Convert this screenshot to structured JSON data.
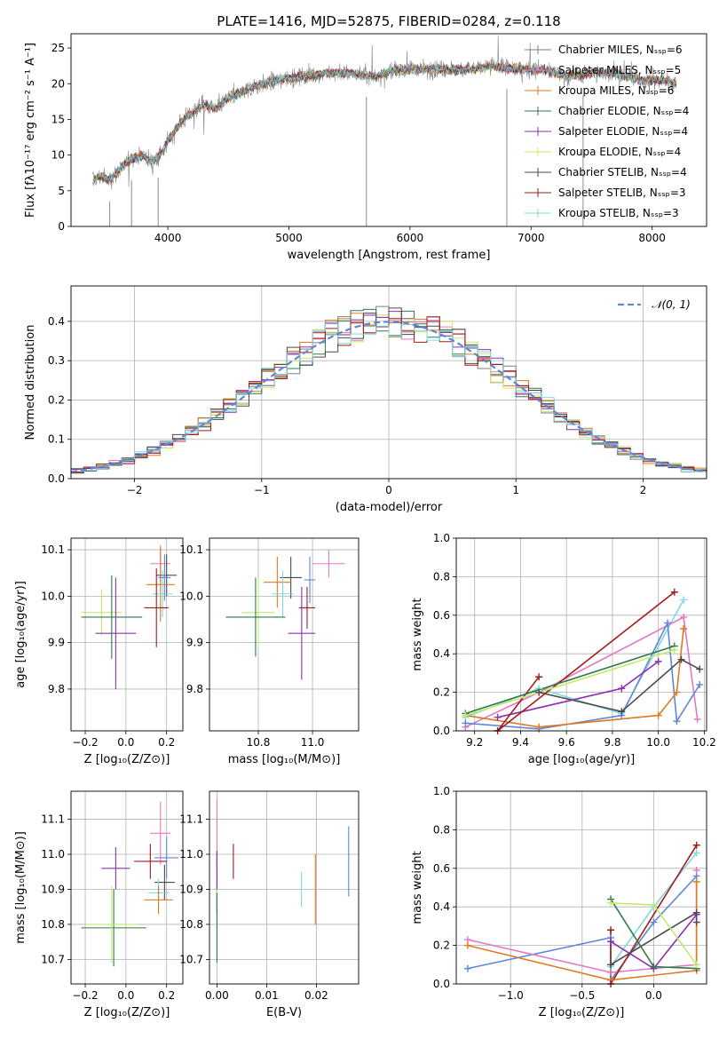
{
  "chart_data": [
    {
      "type": "line",
      "title": "PLATE=1416, MJD=52875, FIBERID=0284, z=0.118",
      "xlabel": "wavelength [Angstrom, rest frame]",
      "ylabel": "Flux [fλ10⁻¹⁷ erg cm⁻² s⁻¹ A⁻¹]",
      "xlim": [
        3200,
        8450
      ],
      "ylim": [
        0,
        27
      ],
      "xticks": [
        4000,
        5000,
        6000,
        7000,
        8000
      ],
      "yticks": [
        0,
        5,
        10,
        15,
        20,
        25
      ],
      "grid": false,
      "legend": "top-right",
      "series": [
        {
          "name": "Chabrier MILES, N_SSP=6",
          "color": "#7f7f7f"
        },
        {
          "name": "Salpeter MILES, N_SSP=5",
          "color": "#e377c2"
        },
        {
          "name": "Kroupa MILES, N_SSP=6",
          "color": "#dd7a23"
        },
        {
          "name": "Chabrier ELODIE, N_SSP=4",
          "color": "#2a7a4a"
        },
        {
          "name": "Salpeter ELODIE, N_SSP=4",
          "color": "#8e2fb0"
        },
        {
          "name": "Kroupa ELODIE, N_SSP=4",
          "color": "#c5e86b"
        },
        {
          "name": "Chabrier STELIB, N_SSP=4",
          "color": "#4a4a4a"
        },
        {
          "name": "Salpeter STELIB, N_SSP=3",
          "color": "#a51a1a"
        },
        {
          "name": "Kroupa STELIB, N_SSP=3",
          "color": "#7fd9e0"
        }
      ],
      "spectrum_anchor_points": {
        "x": [
          3380,
          3450,
          3520,
          3600,
          3700,
          3800,
          3860,
          3900,
          3960,
          4000,
          4100,
          4200,
          4300,
          4400,
          4500,
          4700,
          4900,
          5100,
          5300,
          5500,
          5700,
          5900,
          6100,
          6300,
          6500,
          6700,
          6900,
          7100,
          7300,
          7500,
          7700,
          7900,
          8100,
          8200
        ],
        "y": [
          6.5,
          7.0,
          6.5,
          8.0,
          9.5,
          10.0,
          9.0,
          9.5,
          10.5,
          12.0,
          14.5,
          16.0,
          17.0,
          16.5,
          18.0,
          19.5,
          20.5,
          21.0,
          21.5,
          21.5,
          21.0,
          22.0,
          22.0,
          22.0,
          22.0,
          22.5,
          22.0,
          22.0,
          21.0,
          21.5,
          21.5,
          20.5,
          20.5,
          20.0
        ]
      },
      "spikes_x": [
        3520,
        3700,
        3920,
        5640,
        6800,
        7430
      ]
    },
    {
      "type": "line",
      "xlabel": "(data-model)/error",
      "ylabel": "Normed distribution",
      "xlim": [
        -2.5,
        2.5
      ],
      "ylim": [
        0,
        0.49
      ],
      "xticks": [
        -2,
        -1,
        0,
        1,
        2
      ],
      "yticks": [
        0.0,
        0.1,
        0.2,
        0.3,
        0.4
      ],
      "grid": true,
      "legend": "top-right",
      "reference_curve": {
        "name": "𝒩(0, 1)",
        "color": "#5f87d7",
        "style": "dashed"
      },
      "histograms_described_by": "step histograms, bin width 0.1, one per fit (9 series, same colors as panel 1)"
    },
    {
      "type": "scatter",
      "xlabel": "Z [log₁₀(Z/Z⊙)]",
      "ylabel": "age  [log₁₀(age/yr)]",
      "xlim": [
        -0.27,
        0.28
      ],
      "ylim": [
        9.71,
        10.125
      ],
      "xticks": [
        -0.2,
        0.0,
        0.2
      ],
      "yticks": [
        9.8,
        9.9,
        10.0,
        10.1
      ],
      "grid": true,
      "points": [
        {
          "x": 0.17,
          "y": 10.07,
          "xerr": 0.05,
          "yerr": 0.04,
          "color": "#e377c2"
        },
        {
          "x": 0.2,
          "y": 10.045,
          "xerr": 0.05,
          "yerr": 0.045,
          "color": "#4a4a4a"
        },
        {
          "x": 0.17,
          "y": 10.025,
          "xerr": 0.07,
          "yerr": 0.08,
          "color": "#dd7a23"
        },
        {
          "x": 0.18,
          "y": 10.005,
          "xerr": 0.05,
          "yerr": 0.05,
          "color": "#7fd9e0"
        },
        {
          "x": 0.19,
          "y": 10.04,
          "xerr": 0.03,
          "yerr": 0.05,
          "color": "#5f87d7"
        },
        {
          "x": 0.15,
          "y": 9.975,
          "xerr": 0.06,
          "yerr": 0.085,
          "color": "#a51a1a"
        },
        {
          "x": -0.12,
          "y": 9.965,
          "xerr": 0.1,
          "yerr": 0.05,
          "color": "#c5e86b"
        },
        {
          "x": -0.07,
          "y": 9.955,
          "xerr": 0.15,
          "yerr": 0.09,
          "color": "#2a7a4a"
        },
        {
          "x": -0.05,
          "y": 9.92,
          "xerr": 0.1,
          "yerr": 0.12,
          "color": "#8e2fb0"
        }
      ]
    },
    {
      "type": "scatter",
      "xlabel": "mass [log₁₀(M/M⊙)]",
      "xlim": [
        10.62,
        11.17
      ],
      "ylim": [
        9.71,
        10.125
      ],
      "xticks": [
        10.8,
        11.0
      ],
      "yticks": [
        9.8,
        9.9,
        10.0,
        10.1
      ],
      "grid": true,
      "points": [
        {
          "x": 11.06,
          "y": 10.07,
          "xerr": 0.06,
          "yerr": 0.03,
          "color": "#e377c2"
        },
        {
          "x": 10.92,
          "y": 10.04,
          "xerr": 0.04,
          "yerr": 0.045,
          "color": "#4a4a4a"
        },
        {
          "x": 10.87,
          "y": 10.03,
          "xerr": 0.05,
          "yerr": 0.055,
          "color": "#dd7a23"
        },
        {
          "x": 10.89,
          "y": 10.005,
          "xerr": 0.04,
          "yerr": 0.05,
          "color": "#7fd9e0"
        },
        {
          "x": 10.99,
          "y": 10.035,
          "xerr": 0.02,
          "yerr": 0.05,
          "color": "#5f87d7"
        },
        {
          "x": 10.98,
          "y": 9.975,
          "xerr": 0.03,
          "yerr": 0.045,
          "color": "#a51a1a"
        },
        {
          "x": 10.8,
          "y": 9.965,
          "xerr": 0.06,
          "yerr": 0.075,
          "color": "#c5e86b"
        },
        {
          "x": 10.79,
          "y": 9.955,
          "xerr": 0.11,
          "yerr": 0.085,
          "color": "#2a7a4a"
        },
        {
          "x": 10.96,
          "y": 9.92,
          "xerr": 0.05,
          "yerr": 0.1,
          "color": "#8e2fb0"
        }
      ]
    },
    {
      "type": "line",
      "xlabel": "age  [log₁₀(age/yr)]",
      "ylabel": "mass weight",
      "xlim": [
        9.12,
        10.21
      ],
      "ylim": [
        0.0,
        1.0
      ],
      "xticks": [
        9.2,
        9.4,
        9.6,
        9.8,
        10.0,
        10.2
      ],
      "yticks": [
        0.0,
        0.2,
        0.4,
        0.6,
        0.8,
        1.0
      ],
      "grid": true,
      "series": [
        {
          "color": "#7fd9e0",
          "x": [
            9.16,
            9.48,
            9.84,
            10.11
          ],
          "y": [
            0.07,
            0.22,
            0.09,
            0.68
          ]
        },
        {
          "color": "#e377c2",
          "x": [
            9.16,
            9.48,
            10.11,
            10.17
          ],
          "y": [
            0.02,
            0.2,
            0.59,
            0.06
          ]
        },
        {
          "color": "#5f87d7",
          "x": [
            9.16,
            9.48,
            9.84,
            10.04,
            10.08,
            10.18
          ],
          "y": [
            0.04,
            0.01,
            0.08,
            0.56,
            0.05,
            0.24
          ]
        },
        {
          "color": "#dd7a23",
          "x": [
            9.16,
            9.48,
            10.0,
            10.08,
            10.11
          ],
          "y": [
            0.08,
            0.02,
            0.08,
            0.2,
            0.53
          ]
        },
        {
          "color": "#4a4a4a",
          "x": [
            9.48,
            9.84,
            10.1,
            10.18
          ],
          "y": [
            0.2,
            0.1,
            0.37,
            0.32
          ]
        },
        {
          "color": "#8e2fb0",
          "x": [
            9.3,
            9.84,
            10.0
          ],
          "y": [
            0.07,
            0.22,
            0.36
          ]
        },
        {
          "color": "#a51a1a",
          "x": [
            9.48,
            9.3,
            10.07
          ],
          "y": [
            0.28,
            0.0,
            0.72
          ]
        },
        {
          "color": "#2a7a4a",
          "x": [
            9.16,
            10.07
          ],
          "y": [
            0.09,
            0.44
          ]
        },
        {
          "color": "#c5e86b",
          "x": [
            9.16,
            10.07
          ],
          "y": [
            0.08,
            0.42
          ]
        }
      ]
    },
    {
      "type": "scatter",
      "xlabel": "Z [log₁₀(Z/Z⊙)]",
      "ylabel": "mass [log₁₀(M/M⊙)]",
      "xlim": [
        -0.27,
        0.28
      ],
      "ylim": [
        10.63,
        11.18
      ],
      "xticks": [
        -0.2,
        0.0,
        0.2
      ],
      "yticks": [
        10.7,
        10.8,
        10.9,
        11.0,
        11.1
      ],
      "grid": true,
      "points": [
        {
          "x": 0.17,
          "y": 11.06,
          "xerr": 0.05,
          "yerr": 0.09,
          "color": "#e377c2"
        },
        {
          "x": 0.2,
          "y": 10.99,
          "xerr": 0.06,
          "yerr": 0.06,
          "color": "#5f87d7"
        },
        {
          "x": 0.12,
          "y": 10.98,
          "xerr": 0.08,
          "yerr": 0.05,
          "color": "#a51a1a"
        },
        {
          "x": -0.05,
          "y": 10.96,
          "xerr": 0.07,
          "yerr": 0.06,
          "color": "#8e2fb0"
        },
        {
          "x": 0.19,
          "y": 10.92,
          "xerr": 0.05,
          "yerr": 0.05,
          "color": "#4a4a4a"
        },
        {
          "x": 0.16,
          "y": 10.89,
          "xerr": 0.05,
          "yerr": 0.04,
          "color": "#7fd9e0"
        },
        {
          "x": 0.16,
          "y": 10.87,
          "xerr": 0.07,
          "yerr": 0.04,
          "color": "#dd7a23"
        },
        {
          "x": -0.06,
          "y": 10.79,
          "xerr": 0.16,
          "yerr": 0.11,
          "color": "#2a7a4a"
        },
        {
          "x": -0.07,
          "y": 10.8,
          "xerr": 0.13,
          "yerr": 0.11,
          "color": "#c5e86b"
        }
      ]
    },
    {
      "type": "scatter",
      "xlabel": "E(B-V)",
      "xlim": [
        -0.0015,
        0.0285
      ],
      "ylim": [
        10.63,
        11.18
      ],
      "xticks": [
        0.0,
        0.01,
        0.02
      ],
      "yticks": [
        10.7,
        10.8,
        10.9,
        11.0,
        11.1
      ],
      "grid": true,
      "points": [
        {
          "x": 0.0,
          "y": 11.06,
          "yerr": 0.1,
          "color": "#e377c2"
        },
        {
          "x": 0.0,
          "y": 10.92,
          "yerr": 0.09,
          "color": "#4a4a4a"
        },
        {
          "x": 0.0,
          "y": 10.8,
          "yerr": 0.11,
          "color": "#c5e86b"
        },
        {
          "x": 0.0,
          "y": 10.79,
          "yerr": 0.1,
          "color": "#2a7a4a"
        },
        {
          "x": 0.0,
          "y": 10.95,
          "yerr": 0.05,
          "color": "#8e2fb0"
        },
        {
          "x": 0.0033,
          "y": 10.98,
          "yerr": 0.05,
          "color": "#a51a1a"
        },
        {
          "x": 0.017,
          "y": 10.9,
          "yerr": 0.05,
          "color": "#7fd9e0"
        },
        {
          "x": 0.0198,
          "y": 10.9,
          "yerr": 0.1,
          "color": "#dd7a23"
        },
        {
          "x": 0.0265,
          "y": 10.98,
          "yerr": 0.1,
          "color": "#5f87d7"
        }
      ]
    },
    {
      "type": "line",
      "xlabel": "Z [log₁₀(Z/Z⊙)]",
      "ylabel": "mass weight",
      "xlim": [
        -1.38,
        0.37
      ],
      "ylim": [
        0.0,
        1.0
      ],
      "xticks": [
        -1.0,
        -0.5,
        0.0
      ],
      "yticks": [
        0.0,
        0.2,
        0.4,
        0.6,
        0.8,
        1.0
      ],
      "grid": true,
      "series": [
        {
          "color": "#5f87d7",
          "x": [
            -1.3,
            -0.3,
            -0.3,
            0.0,
            0.3,
            0.3
          ],
          "y": [
            0.08,
            0.24,
            0.02,
            0.32,
            0.56,
            0.08
          ]
        },
        {
          "color": "#e377c2",
          "x": [
            -1.3,
            -0.3,
            0.3,
            0.3
          ],
          "y": [
            0.23,
            0.06,
            0.1,
            0.59
          ]
        },
        {
          "color": "#dd7a23",
          "x": [
            -1.3,
            -0.3,
            0.3,
            0.3
          ],
          "y": [
            0.2,
            0.02,
            0.07,
            0.53
          ]
        },
        {
          "color": "#7fd9e0",
          "x": [
            -0.3,
            0.0,
            0.3
          ],
          "y": [
            0.09,
            0.4,
            0.68
          ]
        },
        {
          "color": "#a51a1a",
          "x": [
            -0.3,
            -0.3,
            0.3
          ],
          "y": [
            0.28,
            0.0,
            0.72
          ]
        },
        {
          "color": "#8e2fb0",
          "x": [
            -0.3,
            0.0,
            0.3
          ],
          "y": [
            0.22,
            0.08,
            0.36
          ]
        },
        {
          "color": "#4a4a4a",
          "x": [
            -0.3,
            0.3,
            0.3
          ],
          "y": [
            0.1,
            0.37,
            0.32
          ]
        },
        {
          "color": "#2a7a4a",
          "x": [
            -0.3,
            0.0,
            0.3
          ],
          "y": [
            0.44,
            0.09,
            0.08
          ]
        },
        {
          "color": "#c5e86b",
          "x": [
            -0.3,
            0.0,
            0.3
          ],
          "y": [
            0.42,
            0.41,
            0.1
          ]
        }
      ]
    }
  ]
}
